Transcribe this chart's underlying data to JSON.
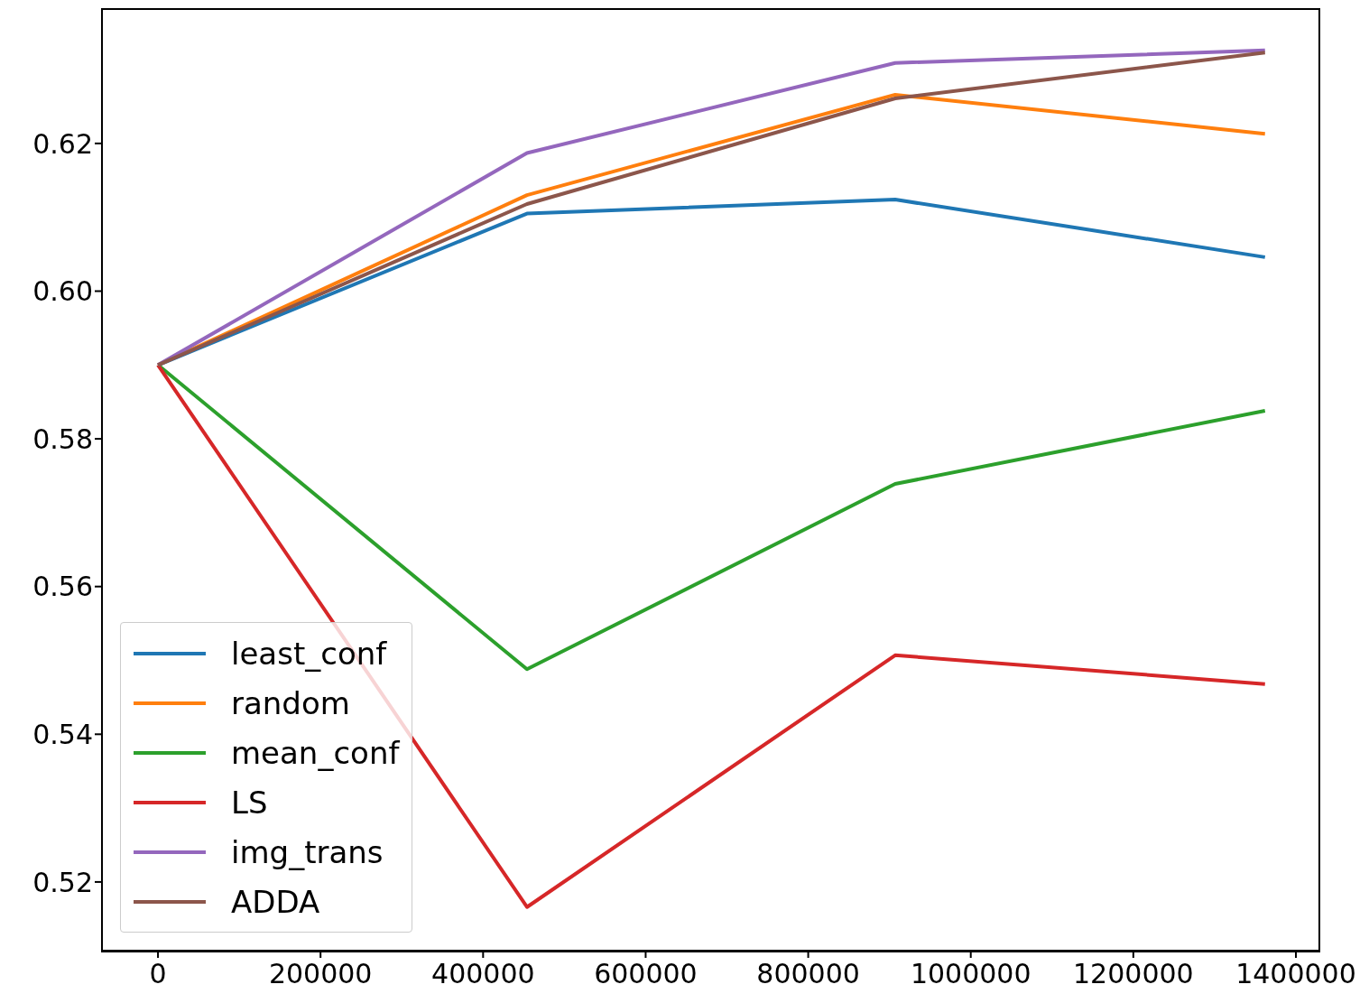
{
  "chart_data": {
    "type": "line",
    "x": [
      0,
      454000,
      907000,
      1362000
    ],
    "series": [
      {
        "name": "least_conf",
        "color": "#1f77b4",
        "values": [
          0.59,
          0.6105,
          0.6124,
          0.6046
        ]
      },
      {
        "name": "random",
        "color": "#ff7f0e",
        "values": [
          0.59,
          0.613,
          0.6266,
          0.6213
        ]
      },
      {
        "name": "mean_conf",
        "color": "#2ca02c",
        "values": [
          0.59,
          0.5488,
          0.5739,
          0.5838
        ]
      },
      {
        "name": "LS",
        "color": "#d62728",
        "values": [
          0.59,
          0.5166,
          0.5507,
          0.5468
        ]
      },
      {
        "name": "img_trans",
        "color": "#9467bd",
        "values": [
          0.59,
          0.6187,
          0.6309,
          0.6326
        ]
      },
      {
        "name": "ADDA",
        "color": "#8c564b",
        "values": [
          0.59,
          0.6118,
          0.6261,
          0.6323
        ]
      }
    ],
    "xlim": [
      -68900,
      1430000
    ],
    "xticks": [
      0,
      200000,
      400000,
      600000,
      800000,
      1000000,
      1200000,
      1400000
    ],
    "ylim": [
      0.5107,
      0.6382
    ],
    "yticks": [
      {
        "value": 0.52,
        "label": "0.52"
      },
      {
        "value": 0.54,
        "label": "0.54"
      },
      {
        "value": 0.56,
        "label": "0.56"
      },
      {
        "value": 0.58,
        "label": "0.58"
      },
      {
        "value": 0.6,
        "label": "0.60"
      },
      {
        "value": 0.62,
        "label": "0.62"
      }
    ],
    "legend": "bottom left",
    "grid": false,
    "marker": "none",
    "line_style": "solid"
  }
}
